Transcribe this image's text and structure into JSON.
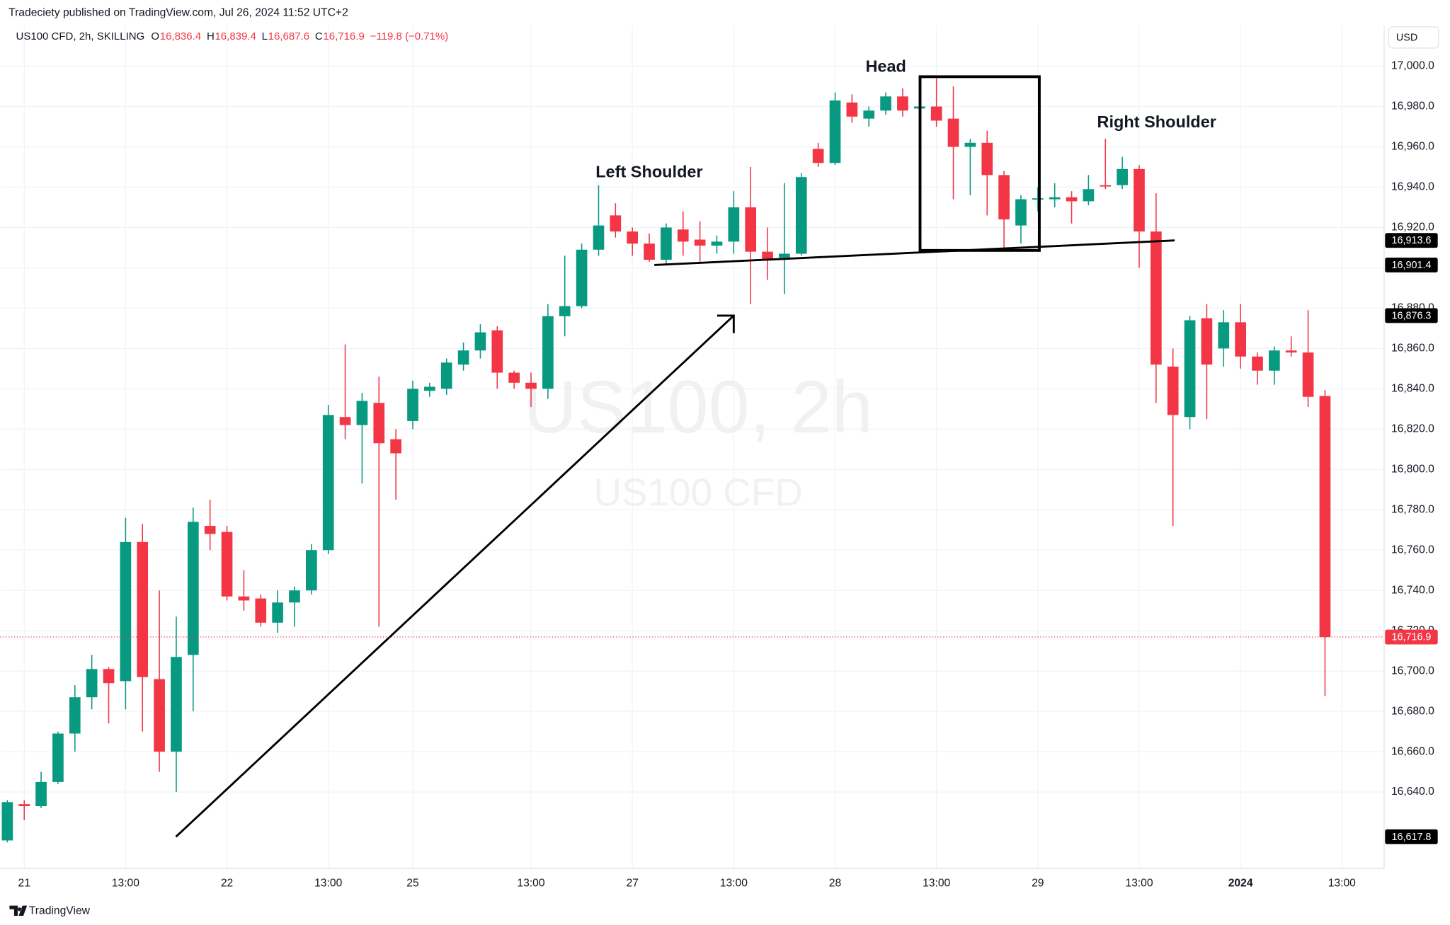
{
  "header": {
    "published": "Tradeciety published on TradingView.com, Jul 26, 2024 11:52 UTC+2",
    "symbol": "US100 CFD, 2h, SKILLING",
    "ohlc": [
      {
        "key": "O",
        "value": "16,836.4"
      },
      {
        "key": "H",
        "value": "16,839.4"
      },
      {
        "key": "L",
        "value": "16,687.6"
      },
      {
        "key": "C",
        "value": "16,716.9"
      }
    ],
    "change": "−119.8 (−0.71%)",
    "currency": "USD"
  },
  "watermark": {
    "title": "US100, 2h",
    "subtitle": "US100 CFD"
  },
  "footer": {
    "brand": "TradingView"
  },
  "chart_data": {
    "type": "candlestick",
    "up_color": "#089981",
    "down_color": "#f23645",
    "grid": true,
    "xlim": [
      -0.42,
      81.5
    ],
    "xticks": [
      {
        "value": 1,
        "label": "21"
      },
      {
        "value": 7,
        "label": "13:00"
      },
      {
        "value": 13,
        "label": "22"
      },
      {
        "value": 19,
        "label": "13:00"
      },
      {
        "value": 24,
        "label": "25"
      },
      {
        "value": 31,
        "label": "13:00"
      },
      {
        "value": 37,
        "label": "27"
      },
      {
        "value": 43,
        "label": "13:00"
      },
      {
        "value": 49,
        "label": "28"
      },
      {
        "value": 55,
        "label": "13:00"
      },
      {
        "value": 61,
        "label": "29"
      },
      {
        "value": 67,
        "label": "13:00"
      },
      {
        "value": 73,
        "label": "2024"
      },
      {
        "value": 79,
        "label": "13:00"
      }
    ],
    "ylim": [
      16602,
      17020
    ],
    "yticks": [
      {
        "value": 16640,
        "label": "16,640.0"
      },
      {
        "value": 16660,
        "label": "16,660.0"
      },
      {
        "value": 16680,
        "label": "16,680.0"
      },
      {
        "value": 16700,
        "label": "16,700.0"
      },
      {
        "value": 16720,
        "label": "16,720.0"
      },
      {
        "value": 16740,
        "label": "16,740.0"
      },
      {
        "value": 16760,
        "label": "16,760.0"
      },
      {
        "value": 16780,
        "label": "16,780.0"
      },
      {
        "value": 16800,
        "label": "16,800.0"
      },
      {
        "value": 16820,
        "label": "16,820.0"
      },
      {
        "value": 16840,
        "label": "16,840.0"
      },
      {
        "value": 16860,
        "label": "16,860.0"
      },
      {
        "value": 16880,
        "label": "16,880.0"
      },
      {
        "value": 16900,
        "label": "16,900.0"
      },
      {
        "value": 16920,
        "label": "16,920.0"
      },
      {
        "value": 16940,
        "label": "16,940.0"
      },
      {
        "value": 16960,
        "label": "16,960.0"
      },
      {
        "value": 16980,
        "label": "16,980.0"
      },
      {
        "value": 17000,
        "label": "17,000.0"
      }
    ],
    "open": [
      16616,
      16634,
      16633,
      16645,
      16669,
      16687,
      16701,
      16695,
      16764,
      16696,
      16660,
      16708,
      16772,
      16769,
      16737,
      16736,
      16724,
      16734,
      16740,
      16760,
      16826,
      16822,
      16833,
      16815,
      16824,
      16839,
      16840,
      16852,
      16859,
      16869,
      16848,
      16843,
      16840,
      16876,
      16881,
      16909,
      16926,
      16918,
      16912,
      16904,
      16919,
      16914,
      16911,
      16913,
      16930,
      16908,
      16905,
      16907,
      16959,
      16952,
      16982,
      16974,
      16978,
      16985,
      16979,
      16980,
      16974,
      16960,
      16962,
      16946,
      16921,
      16934,
      16934,
      16935,
      16933,
      16941,
      16941,
      16949,
      16918,
      16851,
      16826,
      16875,
      16860,
      16873,
      16856,
      16849,
      16859,
      16858,
      16836.4
    ],
    "high": [
      16636,
      16636,
      16650,
      16670,
      16693,
      16708,
      16702,
      16776,
      16773,
      16740,
      16727,
      16781,
      16785,
      16772,
      16750,
      16738,
      16740,
      16742,
      16763,
      16832,
      16862,
      16838,
      16846,
      16820,
      16844,
      16843,
      16855,
      16863,
      16872,
      16871,
      16849,
      16848,
      16882,
      16906,
      16912,
      16941,
      16932,
      16920,
      16917,
      16922,
      16928,
      16923,
      16916,
      16938,
      16950,
      16920,
      16942,
      16947,
      16962,
      16987,
      16986,
      16980,
      16987,
      16989,
      16984,
      16994,
      16990,
      16964,
      16968,
      16948,
      16936,
      16940,
      16942,
      16938,
      16946,
      16964,
      16955,
      16951,
      16937,
      16860,
      16876,
      16882,
      16879,
      16882,
      16858,
      16861,
      16866,
      16879,
      16839.4
    ],
    "low": [
      16615,
      16626,
      16632,
      16644,
      16660,
      16681,
      16674,
      16681,
      16670,
      16650,
      16640,
      16680,
      16760,
      16735,
      16730,
      16722,
      16719,
      16722,
      16738,
      16758,
      16815,
      16793,
      16722,
      16785,
      16820,
      16836,
      16837,
      16849,
      16855,
      16840,
      16840,
      16831,
      16835,
      16866,
      16880,
      16906,
      16915,
      16906,
      16903,
      16902,
      16906,
      16903,
      16907,
      16907,
      16882,
      16894,
      16887,
      16906,
      16950,
      16951,
      16972,
      16970,
      16976,
      16975,
      16976,
      16970,
      16934,
      16936,
      16926,
      16908,
      16912,
      16928,
      16930,
      16922,
      16931,
      16939,
      16939,
      16900,
      16833,
      16772,
      16820,
      16825,
      16851,
      16850,
      16842,
      16842,
      16856,
      16831,
      16687.6
    ],
    "close": [
      16635,
      16633,
      16645,
      16669,
      16687,
      16701,
      16694,
      16764,
      16697,
      16660,
      16707,
      16774,
      16768,
      16737,
      16735,
      16724,
      16734,
      16740,
      16760,
      16827,
      16822,
      16834,
      16813,
      16808,
      16840,
      16841,
      16853,
      16859,
      16868,
      16848,
      16843,
      16840,
      16876,
      16881,
      16909,
      16921,
      16918,
      16912,
      16904,
      16920,
      16913,
      16911,
      16913,
      16930,
      16908,
      16904,
      16907,
      16945,
      16952,
      16983,
      16975,
      16978,
      16985,
      16978,
      16980,
      16973,
      16960,
      16962,
      16946,
      16924,
      16934,
      16934.5,
      16935,
      16933,
      16939,
      16940.5,
      16949,
      16918,
      16852,
      16827,
      16874,
      16852,
      16873,
      16856,
      16849,
      16859,
      16858,
      16836,
      16716.9
    ],
    "price_labels": [
      {
        "value": 16913.6,
        "label": "16,913.6"
      },
      {
        "value": 16901.4,
        "label": "16,901.4"
      },
      {
        "value": 16876.3,
        "label": "16,876.3"
      },
      {
        "value": 16617.8,
        "label": "16,617.8"
      }
    ],
    "last_price": {
      "value": 16716.9,
      "label": "16,716.9"
    },
    "annotations": [
      "Head",
      "Left Shoulder",
      "Right Shoulder"
    ]
  }
}
